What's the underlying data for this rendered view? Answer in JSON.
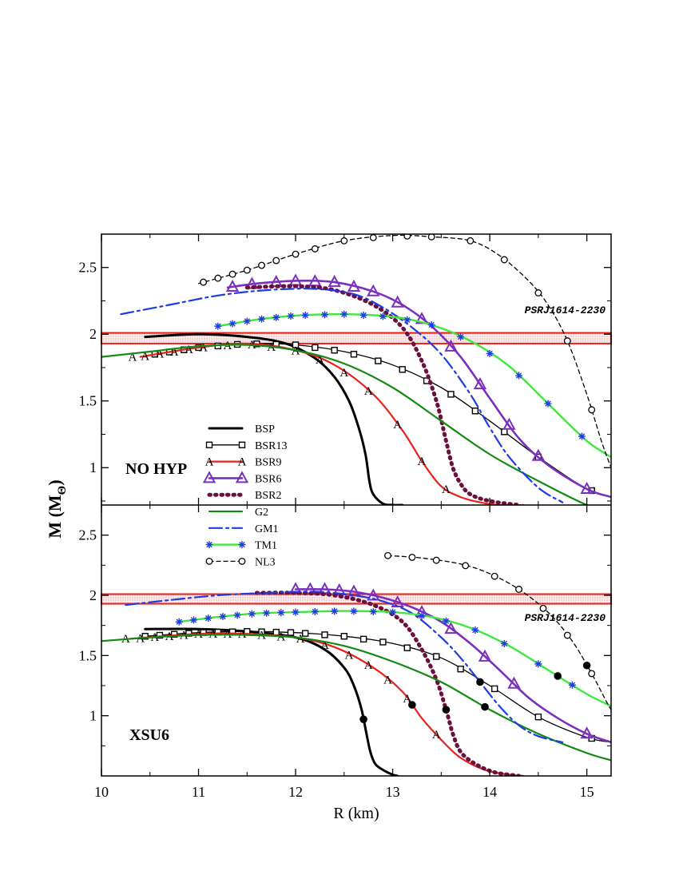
{
  "chart_data": {
    "type": "line",
    "xlabel": "R (km)",
    "ylabel": "M (M",
    "ylabel_sub": "Θ",
    "ylabel_close": ")",
    "xlim": [
      10,
      15.25
    ],
    "x_ticks": [
      10,
      11,
      12,
      13,
      14,
      15
    ],
    "x_tick_labels": [
      "10",
      "11",
      "12",
      "13",
      "14",
      "15"
    ],
    "panels": [
      {
        "id": "top",
        "label": "NO HYP",
        "ylim": [
          0.72,
          2.75
        ],
        "y_ticks": [
          1,
          1.5,
          2,
          2.5
        ],
        "y_tick_labels": [
          "1",
          "1.5",
          "2",
          "2.5"
        ],
        "band": {
          "name": "PSRJ1614-2230",
          "low": 1.93,
          "high": 2.01
        }
      },
      {
        "id": "bottom",
        "label": "XSU6",
        "ylim": [
          0.5,
          2.75
        ],
        "y_ticks": [
          1,
          1.5,
          2,
          2.5
        ],
        "y_tick_labels": [
          "1",
          "1.5",
          "2",
          "2.5"
        ],
        "band": {
          "name": "PSRJ1614-2230",
          "low": 1.93,
          "high": 2.01
        }
      }
    ],
    "legend": [
      {
        "key": "BSP",
        "label": "BSP"
      },
      {
        "key": "BSR13",
        "label": "BSR13"
      },
      {
        "key": "BSR9",
        "label": "BSR9"
      },
      {
        "key": "BSR6",
        "label": "BSR6"
      },
      {
        "key": "BSR2",
        "label": "BSR2"
      },
      {
        "key": "G2",
        "label": "G2"
      },
      {
        "key": "GM1",
        "label": "GM1"
      },
      {
        "key": "TM1",
        "label": "TM1"
      },
      {
        "key": "NL3",
        "label": "NL3"
      }
    ],
    "styles": {
      "BSP": {
        "color": "#000000",
        "width": 3,
        "dash": "",
        "marker": "none"
      },
      "BSR13": {
        "color": "#000000",
        "width": 1.3,
        "dash": "",
        "marker": "square"
      },
      "BSR9": {
        "color": "#e8221b",
        "width": 2.2,
        "dash": "",
        "marker": "A"
      },
      "BSR6": {
        "color": "#7b2fbe",
        "width": 2.6,
        "dash": "",
        "marker": "triangle"
      },
      "BSR2": {
        "color": "#6b0f3c",
        "width": 5,
        "dash": "1.5 6",
        "marker": "none"
      },
      "G2": {
        "color": "#138a13",
        "width": 2.2,
        "dash": "",
        "marker": "none"
      },
      "GM1": {
        "color": "#1e3ce0",
        "width": 2.2,
        "dash": "16 5 3 5",
        "marker": "none"
      },
      "TM1": {
        "color": "#3ee83e",
        "width": 2.4,
        "dash": "",
        "marker": "star"
      },
      "NL3": {
        "color": "#000000",
        "width": 1.3,
        "dash": "5 4",
        "marker": "circle"
      }
    },
    "series": {
      "top": {
        "BSP": {
          "x": [
            10.45,
            11,
            11.5,
            11.9,
            12.2,
            12.4,
            12.55,
            12.65,
            12.72,
            12.76,
            12.8,
            12.9,
            13.0,
            13.1
          ],
          "y": [
            1.98,
            2.0,
            1.98,
            1.93,
            1.82,
            1.68,
            1.5,
            1.3,
            1.1,
            0.9,
            0.8,
            0.73,
            0.72,
            0.72
          ]
        },
        "BSR13": {
          "x": [
            10.55,
            11,
            11.5,
            12,
            12.5,
            13,
            13.5,
            14,
            14.5,
            15,
            15.25
          ],
          "y": [
            1.85,
            1.9,
            1.93,
            1.92,
            1.87,
            1.77,
            1.6,
            1.35,
            1.08,
            0.84,
            0.78
          ],
          "markers_x": [
            10.55,
            10.7,
            10.85,
            11.0,
            11.2,
            11.4,
            11.6,
            11.8,
            12.0,
            12.2,
            12.4,
            12.6,
            12.85,
            13.1,
            13.35,
            13.6,
            13.85,
            14.15,
            14.5,
            15.05
          ]
        },
        "BSR9": {
          "x": [
            10.4,
            11,
            11.5,
            12,
            12.4,
            12.8,
            13.1,
            13.3,
            13.5,
            13.7,
            13.9,
            14.1,
            14.35
          ],
          "y": [
            1.83,
            1.9,
            1.93,
            1.88,
            1.77,
            1.55,
            1.28,
            1.05,
            0.86,
            0.78,
            0.74,
            0.72,
            0.72
          ],
          "markers_x": [
            10.32,
            10.45,
            10.6,
            10.75,
            10.9,
            11.05,
            11.3,
            11.55,
            11.75,
            12.0,
            12.25,
            12.5,
            12.75,
            13.05,
            13.3,
            13.55
          ]
        },
        "BSR6": {
          "x": [
            11.3,
            11.6,
            12,
            12.4,
            12.8,
            13.1,
            13.4,
            13.7,
            14,
            14.3,
            14.6,
            15,
            15.25
          ],
          "y": [
            2.35,
            2.38,
            2.4,
            2.39,
            2.32,
            2.22,
            2.06,
            1.83,
            1.52,
            1.22,
            1.02,
            0.84,
            0.78
          ],
          "markers_x": [
            11.35,
            11.55,
            11.8,
            12.0,
            12.2,
            12.4,
            12.6,
            12.8,
            13.05,
            13.3,
            13.6,
            13.9,
            14.2,
            14.5,
            15.0
          ]
        },
        "BSR2": {
          "x": [
            11.5,
            12,
            12.4,
            12.8,
            13.1,
            13.3,
            13.45,
            13.55,
            13.62,
            13.7,
            13.8,
            14,
            14.3
          ],
          "y": [
            2.35,
            2.36,
            2.33,
            2.22,
            2.05,
            1.8,
            1.5,
            1.2,
            1.0,
            0.88,
            0.8,
            0.75,
            0.72
          ]
        },
        "G2": {
          "x": [
            10,
            10.5,
            11,
            11.5,
            12,
            12.5,
            13,
            13.5,
            14,
            14.5,
            15,
            15.25
          ],
          "y": [
            1.83,
            1.87,
            1.91,
            1.92,
            1.88,
            1.78,
            1.6,
            1.35,
            1.1,
            0.9,
            0.72,
            0.67
          ]
        },
        "GM1": {
          "x": [
            10.2,
            10.7,
            11.2,
            11.7,
            12.2,
            12.6,
            12.9,
            13.2,
            13.5,
            13.8,
            14,
            14.2,
            14.5,
            14.75
          ],
          "y": [
            2.15,
            2.22,
            2.29,
            2.33,
            2.34,
            2.3,
            2.2,
            2.05,
            1.85,
            1.55,
            1.3,
            1.08,
            0.85,
            0.74
          ]
        },
        "TM1": {
          "x": [
            11.2,
            11.6,
            12,
            12.5,
            13,
            13.4,
            13.8,
            14.2,
            14.6,
            15,
            15.25
          ],
          "y": [
            2.06,
            2.11,
            2.14,
            2.15,
            2.13,
            2.07,
            1.95,
            1.76,
            1.48,
            1.2,
            1.08
          ],
          "markers_x": [
            11.2,
            11.35,
            11.5,
            11.65,
            11.8,
            11.95,
            12.1,
            12.3,
            12.5,
            12.7,
            12.9,
            13.15,
            13.4,
            13.7,
            14.0,
            14.3,
            14.6,
            14.95
          ]
        },
        "NL3": {
          "x": [
            11.0,
            11.5,
            12,
            12.5,
            13,
            13.4,
            13.8,
            14.1,
            14.4,
            14.6,
            14.8,
            15.0,
            15.15,
            15.25
          ],
          "y": [
            2.38,
            2.48,
            2.6,
            2.7,
            2.74,
            2.73,
            2.7,
            2.59,
            2.4,
            2.22,
            1.95,
            1.55,
            1.2,
            1.0
          ],
          "markers_x": [
            11.05,
            11.2,
            11.35,
            11.5,
            11.65,
            11.8,
            12.0,
            12.2,
            12.5,
            12.8,
            13.15,
            13.4,
            13.8,
            14.15,
            14.5,
            14.8,
            15.05
          ]
        }
      },
      "bottom": {
        "BSP": {
          "x": [
            10.45,
            11,
            11.5,
            12,
            12.3,
            12.5,
            12.6,
            12.68,
            12.73,
            12.77,
            12.82,
            12.9,
            13.0,
            13.05
          ],
          "y": [
            1.72,
            1.72,
            1.7,
            1.65,
            1.55,
            1.4,
            1.25,
            1.05,
            0.85,
            0.7,
            0.6,
            0.55,
            0.51,
            0.5
          ],
          "bullets_x": [
            12.7
          ]
        },
        "BSR13": {
          "x": [
            10.45,
            11,
            11.5,
            12,
            12.5,
            13,
            13.5,
            14,
            14.5,
            15,
            15.25
          ],
          "y": [
            1.66,
            1.69,
            1.7,
            1.69,
            1.66,
            1.6,
            1.48,
            1.25,
            0.99,
            0.82,
            0.78
          ],
          "markers_x": [
            10.45,
            10.6,
            10.75,
            10.9,
            11.05,
            11.2,
            11.35,
            11.5,
            11.65,
            11.8,
            11.95,
            12.1,
            12.3,
            12.5,
            12.7,
            12.9,
            13.15,
            13.45,
            13.7,
            14.05,
            14.5,
            15.05
          ]
        },
        "BSR9": {
          "x": [
            10.3,
            11,
            11.5,
            12,
            12.4,
            12.8,
            13.1,
            13.3,
            13.5,
            13.7,
            13.95,
            14.2,
            14.35
          ],
          "y": [
            1.64,
            1.68,
            1.68,
            1.65,
            1.57,
            1.4,
            1.2,
            0.98,
            0.8,
            0.65,
            0.55,
            0.51,
            0.5
          ],
          "markers_x": [
            10.25,
            10.4,
            10.55,
            10.7,
            10.85,
            11.0,
            11.15,
            11.3,
            11.45,
            11.65,
            11.85,
            12.05,
            12.3,
            12.55,
            12.75,
            12.95,
            13.15,
            13.45
          ],
          "bullets_x": [
            13.2
          ]
        },
        "BSR6": {
          "x": [
            12.0,
            12.3,
            12.6,
            12.9,
            13.2,
            13.5,
            13.8,
            14.1,
            14.4,
            14.7,
            15,
            15.25
          ],
          "y": [
            2.05,
            2.05,
            2.03,
            1.98,
            1.9,
            1.78,
            1.6,
            1.38,
            1.15,
            0.98,
            0.85,
            0.78
          ],
          "markers_x": [
            12.0,
            12.15,
            12.3,
            12.45,
            12.6,
            12.8,
            13.05,
            13.3,
            13.6,
            13.95,
            14.25,
            15.0
          ]
        },
        "BSR2": {
          "x": [
            11.6,
            12,
            12.4,
            12.8,
            13.1,
            13.3,
            13.45,
            13.55,
            13.62,
            13.7,
            13.85,
            14.05,
            14.3
          ],
          "y": [
            2.02,
            2.02,
            2.0,
            1.92,
            1.78,
            1.55,
            1.3,
            1.05,
            0.85,
            0.7,
            0.6,
            0.53,
            0.5
          ],
          "bullets_x": [
            13.55
          ]
        },
        "G2": {
          "x": [
            10,
            10.5,
            11,
            11.5,
            12,
            12.5,
            13,
            13.5,
            14,
            14.5,
            15,
            15.25
          ],
          "y": [
            1.62,
            1.65,
            1.67,
            1.67,
            1.65,
            1.58,
            1.45,
            1.28,
            1.05,
            0.85,
            0.69,
            0.63
          ],
          "bullets_x": [
            13.95
          ]
        },
        "GM1": {
          "x": [
            10.25,
            10.7,
            11.2,
            11.7,
            12.2,
            12.6,
            12.9,
            13.2,
            13.5,
            13.7,
            13.9,
            14.1,
            14.3,
            14.5,
            14.75
          ],
          "y": [
            1.92,
            1.96,
            2.0,
            2.02,
            2.03,
            2.0,
            1.95,
            1.85,
            1.65,
            1.48,
            1.28,
            1.08,
            0.92,
            0.83,
            0.78
          ],
          "bullets_x": [
            13.9
          ]
        },
        "TM1": {
          "x": [
            10.8,
            11.2,
            11.6,
            12,
            12.5,
            13,
            13.4,
            13.8,
            14.2,
            14.6,
            15,
            15.25
          ],
          "y": [
            1.78,
            1.82,
            1.85,
            1.86,
            1.87,
            1.86,
            1.82,
            1.73,
            1.58,
            1.38,
            1.18,
            1.08
          ],
          "markers_x": [
            10.8,
            10.95,
            11.1,
            11.25,
            11.4,
            11.55,
            11.7,
            11.85,
            12.0,
            12.2,
            12.4,
            12.6,
            12.8,
            13.0,
            13.3,
            13.55,
            13.85,
            14.15,
            14.5,
            14.85
          ],
          "bullets_x": [
            14.7
          ]
        },
        "NL3": {
          "x": [
            12.95,
            13.3,
            13.7,
            14.0,
            14.3,
            14.6,
            14.85,
            15.05,
            15.2,
            15.25
          ],
          "y": [
            2.33,
            2.31,
            2.26,
            2.18,
            2.05,
            1.86,
            1.62,
            1.35,
            1.12,
            1.05
          ],
          "markers_x": [
            12.95,
            13.2,
            13.45,
            13.75,
            14.05,
            14.3,
            14.55,
            14.8,
            15.05
          ],
          "bullets_x": [
            15.0
          ]
        }
      }
    }
  }
}
